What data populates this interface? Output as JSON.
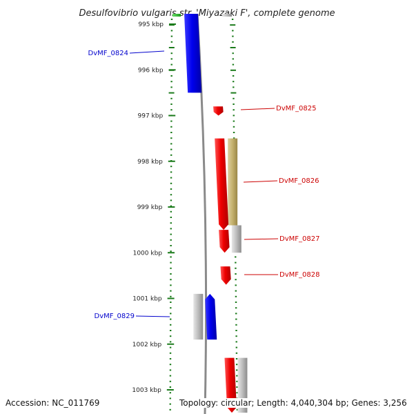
{
  "title": "Desulfovibrio vulgaris str. 'Miyazaki F', complete genome",
  "accession": "Accession: NC_011769",
  "summary": "Topology: circular; Length: 4,040,304 bp; Genes: 3,256",
  "colors": {
    "forward_gene": "#e00000",
    "reverse_gene": "#0000ee",
    "gray_feature": "#b4b4b4",
    "olive_feature": "#c8b672",
    "tick": "#1a7a1a",
    "backbone": "#8a8a8a",
    "forward_label": "#cc0000",
    "reverse_label": "#0000cc"
  },
  "ruler": {
    "unit": "kbp",
    "labels": [
      "995 kbp",
      "996 kbp",
      "997 kbp",
      "998 kbp",
      "999 kbp",
      "1000 kbp",
      "1001 kbp",
      "1002 kbp",
      "1003 kbp"
    ],
    "positions_kbp": [
      995,
      996,
      997,
      998,
      999,
      1000,
      1001,
      1002,
      1003
    ]
  },
  "genes": [
    {
      "id": "DvMF_0824",
      "label": "DvMF_0824",
      "strand": "reverse",
      "start_kbp": 994.6,
      "end_kbp": 996.5
    },
    {
      "id": "DvMF_0825",
      "label": "DvMF_0825",
      "strand": "forward",
      "start_kbp": 996.8,
      "end_kbp": 997.0
    },
    {
      "id": "DvMF_0826",
      "label": "DvMF_0826",
      "strand": "forward",
      "start_kbp": 997.5,
      "end_kbp": 999.5
    },
    {
      "id": "DvMF_0827",
      "label": "DvMF_0827",
      "strand": "forward",
      "start_kbp": 999.5,
      "end_kbp": 1000.0
    },
    {
      "id": "DvMF_0828",
      "label": "DvMF_0828",
      "strand": "forward",
      "start_kbp": 1000.3,
      "end_kbp": 1000.7
    },
    {
      "id": "DvMF_0829",
      "label": "DvMF_0829",
      "strand": "reverse",
      "start_kbp": 1000.9,
      "end_kbp": 1001.9
    }
  ],
  "extra_forward_gene": {
    "strand": "forward",
    "start_kbp": 1002.3,
    "end_kbp": 1003.5
  },
  "features": [
    {
      "kind": "olive",
      "track": "forward-feature",
      "start_kbp": 997.5,
      "end_kbp": 999.4
    },
    {
      "kind": "gray",
      "track": "forward-feature",
      "start_kbp": 999.4,
      "end_kbp": 1000.0
    },
    {
      "kind": "gray",
      "track": "reverse-feature",
      "start_kbp": 1000.9,
      "end_kbp": 1001.9
    },
    {
      "kind": "gray",
      "track": "forward-feature",
      "start_kbp": 1002.3,
      "end_kbp": 1003.5
    },
    {
      "kind": "gray",
      "track": "forward-feature",
      "start_kbp": 994.6,
      "end_kbp": 994.65
    },
    {
      "kind": "green",
      "track": "far-reverse",
      "start_kbp": 994.6,
      "end_kbp": 994.7
    }
  ]
}
